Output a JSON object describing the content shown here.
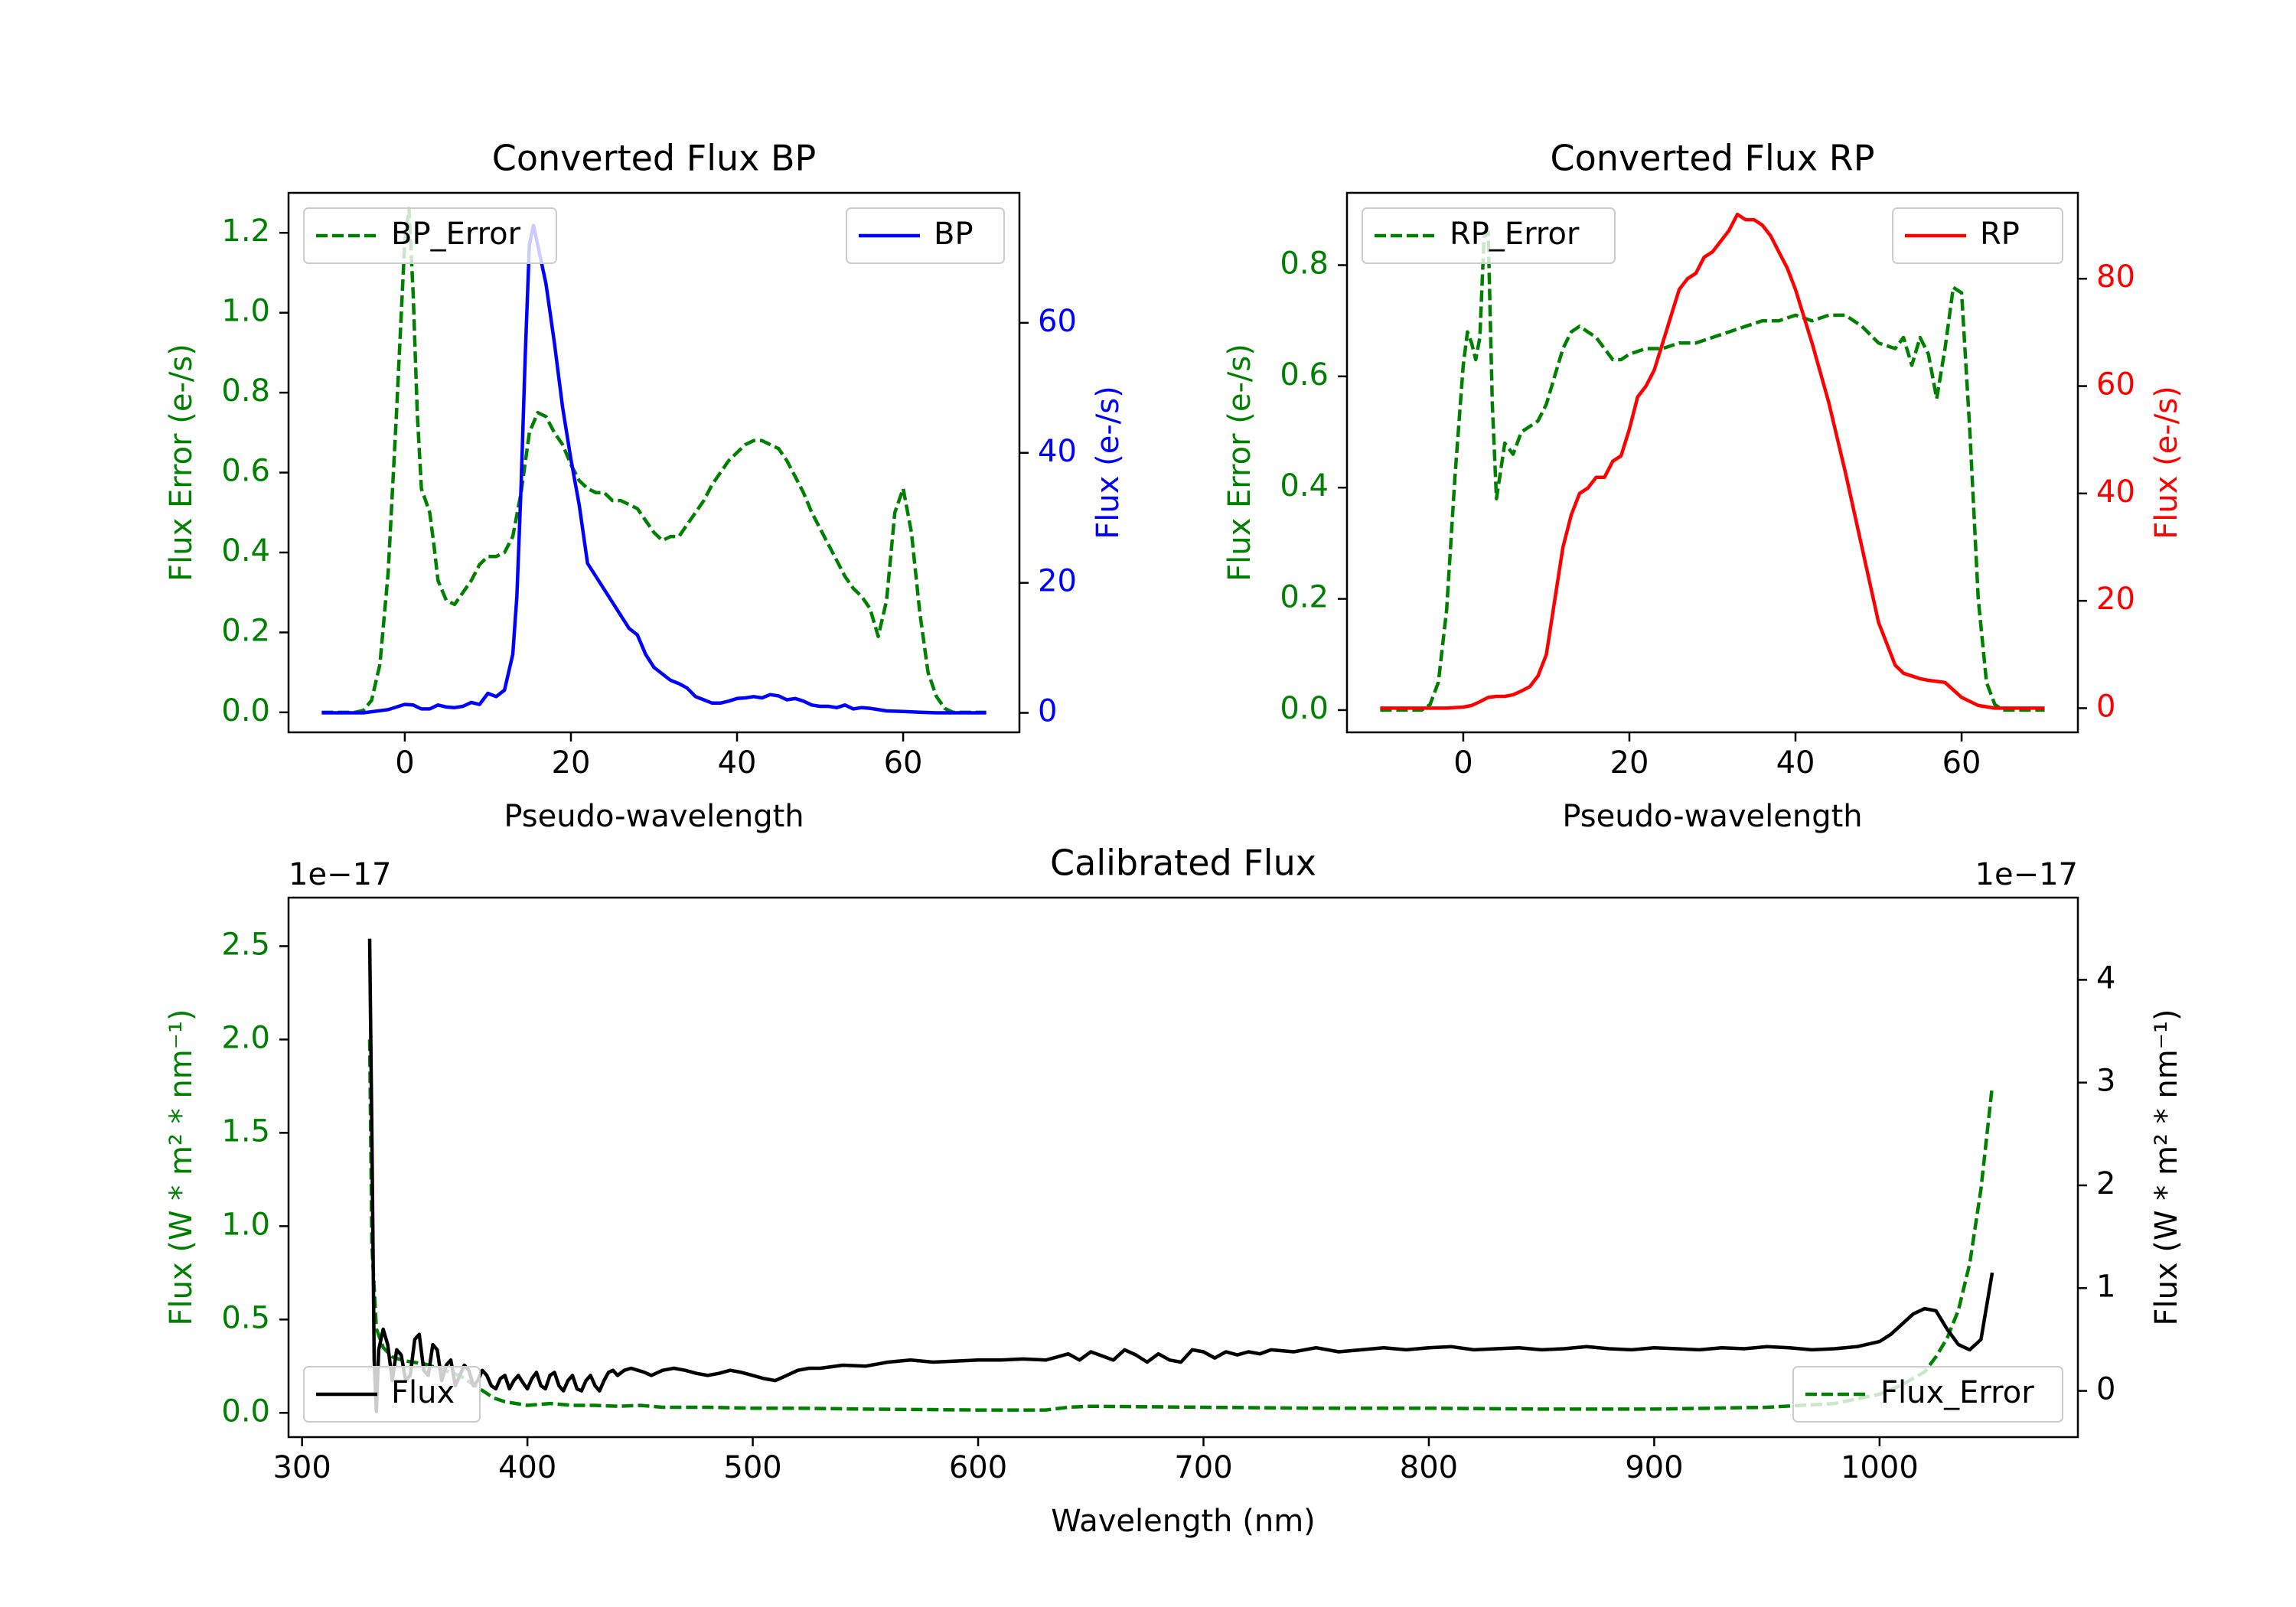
{
  "colors": {
    "error": "#008000",
    "bp": "#0000ff",
    "rp": "#ff0000",
    "calibrated": "#000000",
    "axis": "#000000"
  },
  "chart_data": [
    {
      "id": "bp",
      "type": "line",
      "title": "Converted Flux BP",
      "xlabel": "Pseudo-wavelength",
      "ylabel_left": "Flux Error (e-/s)",
      "ylabel_right": "Flux (e-/s)",
      "xlim": [
        -14,
        74
      ],
      "ylim_left": [
        -0.05,
        1.3
      ],
      "ylim_right": [
        -3,
        80
      ],
      "xticks": [
        0,
        20,
        40,
        60
      ],
      "yticks_left": [
        0.0,
        0.2,
        0.4,
        0.6,
        0.8,
        1.0,
        1.2
      ],
      "yticks_right": [
        0,
        20,
        40,
        60
      ],
      "ytick_labels_left": [
        "0.0",
        "0.2",
        "0.4",
        "0.6",
        "0.8",
        "1.0",
        "1.2"
      ],
      "ytick_labels_right": [
        "0",
        "20",
        "40",
        "60"
      ],
      "legend_left": "BP_Error",
      "legend_right": "BP",
      "series": [
        {
          "name": "BP_Error",
          "axis": "left",
          "style": "dashed",
          "color_key": "error",
          "x": [
            -10,
            -6,
            -5,
            -4,
            -3,
            -2,
            -1,
            0,
            0.5,
            1,
            1.5,
            2,
            3,
            3.5,
            4,
            5,
            6,
            7,
            8,
            9,
            10,
            11,
            12,
            13,
            14,
            15,
            16,
            17,
            18,
            19,
            20,
            21,
            22,
            23,
            24,
            25,
            26,
            27,
            28,
            29,
            30,
            31,
            32,
            33,
            34,
            35,
            36,
            37,
            38,
            39,
            40,
            41,
            42,
            43,
            44,
            45,
            46,
            47,
            48,
            49,
            50,
            51,
            52,
            53,
            54,
            55,
            56,
            57,
            58,
            59,
            60,
            61,
            62,
            63,
            64,
            65,
            66,
            70
          ],
          "y": [
            0,
            0,
            0.005,
            0.03,
            0.12,
            0.35,
            0.75,
            1.18,
            1.26,
            1.05,
            0.75,
            0.56,
            0.5,
            0.42,
            0.33,
            0.28,
            0.27,
            0.3,
            0.33,
            0.37,
            0.39,
            0.39,
            0.4,
            0.44,
            0.55,
            0.7,
            0.75,
            0.74,
            0.7,
            0.67,
            0.62,
            0.58,
            0.56,
            0.55,
            0.55,
            0.53,
            0.53,
            0.52,
            0.51,
            0.48,
            0.45,
            0.43,
            0.44,
            0.44,
            0.47,
            0.5,
            0.53,
            0.57,
            0.6,
            0.63,
            0.65,
            0.67,
            0.68,
            0.68,
            0.67,
            0.66,
            0.63,
            0.59,
            0.55,
            0.5,
            0.46,
            0.42,
            0.38,
            0.34,
            0.31,
            0.29,
            0.26,
            0.19,
            0.28,
            0.5,
            0.56,
            0.45,
            0.25,
            0.1,
            0.04,
            0.01,
            0,
            0
          ]
        },
        {
          "name": "BP",
          "axis": "right",
          "style": "solid",
          "color_key": "bp",
          "x": [
            -10,
            -5,
            -2,
            0,
            1,
            2,
            3,
            4,
            5,
            6,
            7,
            8,
            9,
            10,
            11,
            12,
            13,
            13.5,
            14,
            14.5,
            15,
            15.5,
            16,
            17,
            18,
            19,
            20,
            21,
            22,
            23,
            24,
            25,
            26,
            27,
            28,
            29,
            30,
            31,
            32,
            33,
            34,
            35,
            36,
            37,
            38,
            39,
            40,
            41,
            42,
            43,
            44,
            45,
            46,
            47,
            48,
            49,
            50,
            51,
            52,
            53,
            54,
            55,
            56,
            58,
            60,
            62,
            64,
            66,
            70
          ],
          "y": [
            0,
            0,
            0.5,
            1.3,
            1.2,
            0.6,
            0.6,
            1.2,
            0.9,
            0.8,
            1.0,
            1.6,
            1.3,
            3.0,
            2.5,
            3.5,
            9,
            18,
            35,
            55,
            72,
            75,
            72,
            66,
            57,
            47,
            39,
            32,
            23,
            21,
            19,
            17,
            15,
            13,
            12,
            9,
            7,
            6,
            5,
            4.5,
            3.8,
            2.5,
            2,
            1.5,
            1.5,
            1.8,
            2.2,
            2.3,
            2.5,
            2.3,
            2.8,
            2.6,
            2.0,
            2.2,
            1.8,
            1.2,
            1.0,
            1.0,
            0.8,
            1.2,
            0.6,
            0.8,
            0.7,
            0.3,
            0.2,
            0.1,
            0,
            0,
            0
          ]
        }
      ]
    },
    {
      "id": "rp",
      "type": "line",
      "title": "Converted Flux RP",
      "xlabel": "Pseudo-wavelength",
      "ylabel_left": "Flux Error (e-/s)",
      "ylabel_right": "Flux (e-/s)",
      "xlim": [
        -14,
        74
      ],
      "ylim_left": [
        -0.04,
        0.93
      ],
      "ylim_right": [
        -4.5,
        96
      ],
      "xticks": [
        0,
        20,
        40,
        60
      ],
      "yticks_left": [
        0.0,
        0.2,
        0.4,
        0.6,
        0.8
      ],
      "yticks_right": [
        0,
        20,
        40,
        60,
        80
      ],
      "ytick_labels_left": [
        "0.0",
        "0.2",
        "0.4",
        "0.6",
        "0.8"
      ],
      "ytick_labels_right": [
        "0",
        "20",
        "40",
        "60",
        "80"
      ],
      "legend_left": "RP_Error",
      "legend_right": "RP",
      "series": [
        {
          "name": "RP_Error",
          "axis": "left",
          "style": "dashed",
          "color_key": "error",
          "x": [
            -10,
            -5,
            -4,
            -3,
            -2,
            -1,
            0,
            0.5,
            1,
            1.5,
            2,
            2.5,
            3,
            3.5,
            4,
            5,
            6,
            7,
            8,
            9,
            10,
            11,
            12,
            13,
            14,
            15,
            16,
            17,
            18,
            19,
            20,
            22,
            24,
            26,
            28,
            30,
            32,
            34,
            36,
            38,
            40,
            42,
            44,
            46,
            48,
            50,
            52,
            53,
            54,
            55,
            56,
            57,
            58,
            59,
            60,
            61,
            62,
            63,
            64,
            65,
            66,
            70
          ],
          "y": [
            0,
            0,
            0.01,
            0.05,
            0.18,
            0.42,
            0.62,
            0.68,
            0.66,
            0.63,
            0.67,
            0.85,
            0.86,
            0.55,
            0.38,
            0.48,
            0.46,
            0.5,
            0.51,
            0.52,
            0.55,
            0.6,
            0.65,
            0.68,
            0.69,
            0.68,
            0.67,
            0.65,
            0.63,
            0.63,
            0.64,
            0.65,
            0.65,
            0.66,
            0.66,
            0.67,
            0.68,
            0.69,
            0.7,
            0.7,
            0.71,
            0.7,
            0.71,
            0.71,
            0.69,
            0.66,
            0.65,
            0.67,
            0.62,
            0.67,
            0.64,
            0.56,
            0.65,
            0.76,
            0.75,
            0.5,
            0.2,
            0.05,
            0.01,
            0,
            0,
            0
          ]
        },
        {
          "name": "RP",
          "axis": "right",
          "style": "solid",
          "color_key": "rp",
          "x": [
            -10,
            -5,
            -2,
            0,
            1,
            2,
            3,
            4,
            5,
            6,
            7,
            8,
            9,
            10,
            11,
            12,
            13,
            14,
            15,
            16,
            17,
            18,
            19,
            20,
            21,
            22,
            23,
            24,
            25,
            26,
            27,
            28,
            29,
            30,
            31,
            32,
            33,
            34,
            35,
            36,
            37,
            38,
            39,
            40,
            42,
            44,
            46,
            48,
            50,
            52,
            53,
            54,
            55,
            56,
            58,
            60,
            62,
            64,
            66,
            70
          ],
          "y": [
            0,
            0,
            0,
            0.2,
            0.5,
            1.2,
            2,
            2.2,
            2.2,
            2.5,
            3.2,
            4,
            6,
            10,
            20,
            30,
            36,
            40,
            41,
            43,
            43,
            46,
            47,
            52,
            58,
            60,
            63,
            68,
            73,
            78,
            80,
            81,
            84,
            85,
            87,
            89,
            92,
            91,
            91,
            90,
            88,
            85,
            82,
            78,
            68,
            57,
            44,
            30,
            16,
            8,
            6.5,
            6,
            5.5,
            5.2,
            4.8,
            2,
            0.5,
            0,
            0,
            0
          ]
        }
      ]
    },
    {
      "id": "cal",
      "type": "line",
      "title": "Calibrated Flux",
      "xlabel": "Wavelength (nm)",
      "ylabel_left": "Flux (W * m² * nm⁻¹)",
      "ylabel_right": "Flux (W * m² * nm⁻¹)",
      "offset_left": "1e−17",
      "offset_right": "1e−17",
      "xlim": [
        294,
        1088
      ],
      "ylim_left": [
        -0.13,
        2.76
      ],
      "ylim_right": [
        -0.45,
        4.8
      ],
      "xticks": [
        300,
        400,
        500,
        600,
        700,
        800,
        900,
        1000
      ],
      "yticks_left": [
        0.0,
        0.5,
        1.0,
        1.5,
        2.0,
        2.5
      ],
      "yticks_right": [
        0,
        1,
        2,
        3,
        4
      ],
      "ytick_labels_left": [
        "0.0",
        "0.5",
        "1.0",
        "1.5",
        "2.0",
        "2.5"
      ],
      "ytick_labels_right": [
        "0",
        "1",
        "2",
        "3",
        "4"
      ],
      "legend_left": "Flux",
      "legend_right": "Flux_Error",
      "series": [
        {
          "name": "Flux_Error",
          "axis": "left",
          "style": "dashed",
          "color_key": "error",
          "x": [
            330,
            331,
            333,
            336,
            340,
            345,
            350,
            355,
            360,
            365,
            370,
            375,
            380,
            385,
            390,
            395,
            400,
            410,
            420,
            430,
            440,
            450,
            460,
            480,
            500,
            520,
            550,
            600,
            630,
            640,
            650,
            700,
            750,
            800,
            850,
            900,
            950,
            980,
            1000,
            1010,
            1020,
            1025,
            1030,
            1035,
            1040,
            1045,
            1050
          ],
          "y": [
            2.0,
            0.9,
            0.45,
            0.35,
            0.3,
            0.28,
            0.27,
            0.26,
            0.24,
            0.22,
            0.2,
            0.16,
            0.12,
            0.08,
            0.06,
            0.05,
            0.04,
            0.05,
            0.04,
            0.04,
            0.035,
            0.04,
            0.03,
            0.03,
            0.025,
            0.025,
            0.02,
            0.015,
            0.015,
            0.03,
            0.035,
            0.03,
            0.025,
            0.025,
            0.02,
            0.02,
            0.03,
            0.05,
            0.1,
            0.15,
            0.22,
            0.3,
            0.4,
            0.55,
            0.8,
            1.2,
            1.75
          ]
        },
        {
          "name": "Flux",
          "axis": "right",
          "style": "solid",
          "color_key": "calibrated",
          "x": [
            330,
            331,
            332,
            333,
            334,
            336,
            338,
            340,
            342,
            344,
            346,
            348,
            350,
            352,
            354,
            356,
            358,
            360,
            362,
            364,
            366,
            368,
            370,
            372,
            374,
            376,
            378,
            380,
            382,
            384,
            386,
            388,
            390,
            392,
            394,
            396,
            398,
            400,
            402,
            404,
            406,
            408,
            410,
            412,
            414,
            416,
            418,
            420,
            422,
            424,
            426,
            428,
            430,
            432,
            434,
            436,
            438,
            440,
            443,
            446,
            449,
            452,
            455,
            460,
            465,
            470,
            475,
            480,
            485,
            490,
            495,
            500,
            505,
            510,
            515,
            520,
            525,
            530,
            540,
            550,
            560,
            570,
            580,
            590,
            600,
            610,
            620,
            630,
            635,
            640,
            645,
            650,
            655,
            660,
            665,
            670,
            675,
            680,
            685,
            690,
            695,
            700,
            705,
            710,
            715,
            720,
            725,
            730,
            740,
            750,
            760,
            770,
            780,
            790,
            800,
            810,
            820,
            830,
            840,
            850,
            860,
            870,
            880,
            890,
            900,
            910,
            920,
            930,
            940,
            950,
            960,
            970,
            980,
            990,
            1000,
            1005,
            1010,
            1015,
            1020,
            1025,
            1030,
            1035,
            1040,
            1045,
            1050
          ],
          "y": [
            4.4,
            2.5,
            0.3,
            -0.2,
            0.4,
            0.6,
            0.45,
            0.1,
            0.4,
            0.35,
            0.1,
            0.15,
            0.5,
            0.55,
            0.2,
            0.15,
            0.45,
            0.4,
            0.1,
            0.25,
            0.3,
            0.05,
            0.15,
            0.25,
            0.2,
            0.05,
            0.1,
            0.2,
            0.15,
            0.05,
            0.02,
            0.12,
            0.15,
            0.02,
            0.1,
            0.15,
            0.08,
            0.02,
            0.12,
            0.18,
            0.05,
            0.02,
            0.15,
            0.18,
            0.05,
            0.0,
            0.1,
            0.15,
            0.02,
            0.0,
            0.1,
            0.15,
            0.05,
            0.0,
            0.1,
            0.18,
            0.2,
            0.15,
            0.2,
            0.22,
            0.2,
            0.18,
            0.15,
            0.2,
            0.22,
            0.2,
            0.17,
            0.15,
            0.17,
            0.2,
            0.18,
            0.15,
            0.12,
            0.1,
            0.15,
            0.2,
            0.22,
            0.22,
            0.25,
            0.24,
            0.28,
            0.3,
            0.28,
            0.29,
            0.3,
            0.3,
            0.31,
            0.3,
            0.33,
            0.36,
            0.3,
            0.38,
            0.34,
            0.3,
            0.4,
            0.35,
            0.28,
            0.36,
            0.3,
            0.28,
            0.4,
            0.38,
            0.32,
            0.38,
            0.35,
            0.38,
            0.36,
            0.4,
            0.38,
            0.42,
            0.38,
            0.4,
            0.42,
            0.4,
            0.42,
            0.43,
            0.4,
            0.41,
            0.42,
            0.4,
            0.41,
            0.43,
            0.41,
            0.4,
            0.42,
            0.41,
            0.4,
            0.42,
            0.41,
            0.43,
            0.42,
            0.4,
            0.41,
            0.43,
            0.48,
            0.55,
            0.65,
            0.75,
            0.8,
            0.78,
            0.6,
            0.45,
            0.4,
            0.5,
            1.15
          ]
        }
      ]
    }
  ]
}
